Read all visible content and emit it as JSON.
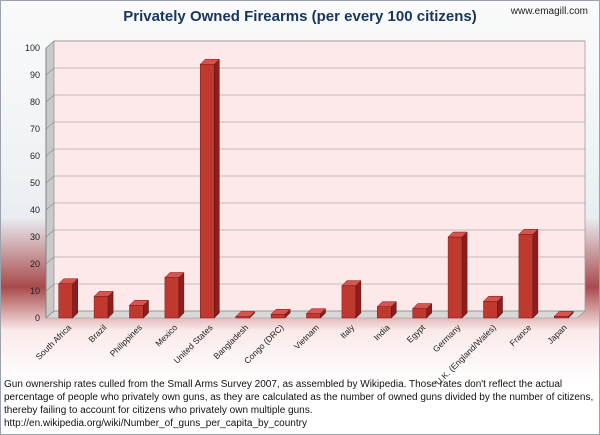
{
  "title": "Privately Owned Firearms (per every 100 citizens)",
  "site": "www.emagill.com",
  "caption": "Gun ownership rates culled from the Small Arms Survey 2007, as assembled by Wikipedia.  Those rates don't reflect the actual percentage of people who privately own guns, as they are calculated as the number of owned guns divided by the number of citizens, thereby failing to account for citizens who privately own multiple guns.  http://en.wikipedia.org/wiki/Number_of_guns_per_capita_by_country",
  "colors": {
    "bar_front": "#c0392e",
    "bar_top": "#d9534f",
    "bar_side": "#8e1d1d",
    "plot_back": "#fde9ea",
    "title": "#17365d"
  },
  "chart_data": {
    "type": "bar",
    "title": "Privately Owned Firearms (per every 100 citizens)",
    "categories": [
      "South Africa",
      "Brazil",
      "Philippines",
      "Mexico",
      "United States",
      "Bangladesh",
      "Congo (DRC)",
      "Vietnam",
      "Italy",
      "India",
      "Egypt",
      "Germany",
      "U.K. (England/Wales)",
      "France",
      "Japan"
    ],
    "values": [
      12.7,
      8.0,
      4.7,
      15.0,
      94.0,
      0.5,
      1.4,
      1.6,
      12.0,
      4.2,
      3.5,
      30.0,
      6.2,
      31.0,
      0.6
    ],
    "ylim": [
      0,
      100
    ],
    "yticks": [
      0,
      10,
      20,
      30,
      40,
      50,
      60,
      70,
      80,
      90,
      100
    ],
    "grid": true,
    "three_d": true
  }
}
